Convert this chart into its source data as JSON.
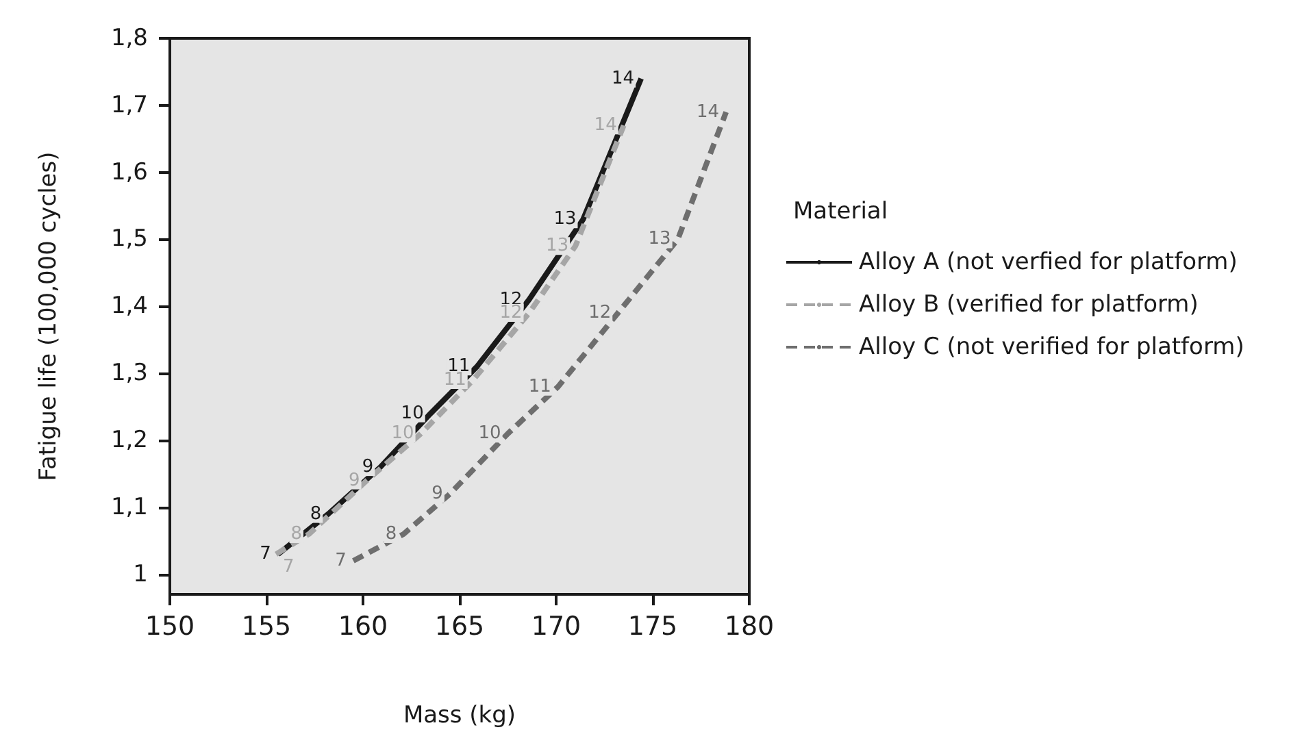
{
  "chart_data": {
    "type": "line",
    "xlabel": "Mass (kg)",
    "ylabel": "Fatigue life (100,000 cycles)",
    "legend_title": "Material",
    "legend": "right",
    "grid": false,
    "marker": "none",
    "xlim": [
      150,
      180
    ],
    "xticks": [
      150,
      155,
      160,
      165,
      170,
      175,
      180
    ],
    "ylim": [
      0.97,
      1.8
    ],
    "yticks": [
      1,
      {
        "value": 1.1,
        "label": "1,1"
      },
      {
        "value": 1.2,
        "label": "1,2"
      },
      {
        "value": 1.3,
        "label": "1,3"
      },
      {
        "value": 1.4,
        "label": "1,4"
      },
      {
        "value": 1.5,
        "label": "1,5"
      },
      {
        "value": 1.6,
        "label": "1,6"
      },
      {
        "value": 1.7,
        "label": "1,7"
      },
      {
        "value": 1.8,
        "label": "1,8"
      }
    ],
    "series": [
      {
        "name": "Alloy A (not verfied for platform)",
        "color": "#1a1a1a",
        "line_style": "solid",
        "x": [
          155.6,
          158.2,
          160.9,
          163.5,
          165.9,
          168.6,
          171.4,
          174.4
        ],
        "values": [
          1.03,
          1.09,
          1.16,
          1.24,
          1.31,
          1.41,
          1.53,
          1.74
        ]
      },
      {
        "name": "Alloy B (verified for platform)",
        "color": "#a6a6a6",
        "line_style": "dashed",
        "x": [
          155.5,
          157.2,
          160.2,
          163.0,
          165.7,
          168.6,
          171.0,
          173.5
        ],
        "values": [
          1.03,
          1.06,
          1.14,
          1.21,
          1.29,
          1.39,
          1.49,
          1.67
        ]
      },
      {
        "name": "Alloy C (not verified for platform)",
        "color": "#6e6e6e",
        "line_style": "dashed",
        "x": [
          159.5,
          162.1,
          164.5,
          167.5,
          170.1,
          173.2,
          176.3,
          178.8
        ],
        "values": [
          1.02,
          1.06,
          1.12,
          1.21,
          1.28,
          1.39,
          1.5,
          1.69
        ]
      }
    ],
    "annotations": [
      {
        "text": "7",
        "x": 155.6,
        "y": 1.03
      },
      {
        "text": "8",
        "x": 158.2,
        "y": 1.09
      },
      {
        "text": "9",
        "x": 160.9,
        "y": 1.16
      },
      {
        "text": "10",
        "x": 163.5,
        "y": 1.24
      },
      {
        "text": "11",
        "x": 165.9,
        "y": 1.31
      },
      {
        "text": "12",
        "x": 168.6,
        "y": 1.41
      },
      {
        "text": "13",
        "x": 171.4,
        "y": 1.53
      },
      {
        "text": "14",
        "x": 174.4,
        "y": 1.74
      },
      {
        "text": "7",
        "x": 155.5,
        "y": 1.03
      },
      {
        "text": "8",
        "x": 157.2,
        "y": 1.06
      },
      {
        "text": "9",
        "x": 160.2,
        "y": 1.14
      },
      {
        "text": "10",
        "x": 163.0,
        "y": 1.21
      },
      {
        "text": "11",
        "x": 165.7,
        "y": 1.29
      },
      {
        "text": "12",
        "x": 168.6,
        "y": 1.39
      },
      {
        "text": "13",
        "x": 171.0,
        "y": 1.49
      },
      {
        "text": "14",
        "x": 173.5,
        "y": 1.67
      },
      {
        "text": "7",
        "x": 159.5,
        "y": 1.02
      },
      {
        "text": "8",
        "x": 162.1,
        "y": 1.06
      },
      {
        "text": "9",
        "x": 164.5,
        "y": 1.12
      },
      {
        "text": "10",
        "x": 167.5,
        "y": 1.21
      },
      {
        "text": "11",
        "x": 170.1,
        "y": 1.28
      },
      {
        "text": "12",
        "x": 173.2,
        "y": 1.39
      },
      {
        "text": "13",
        "x": 176.3,
        "y": 1.5
      },
      {
        "text": "14",
        "x": 178.8,
        "y": 1.69
      }
    ]
  }
}
